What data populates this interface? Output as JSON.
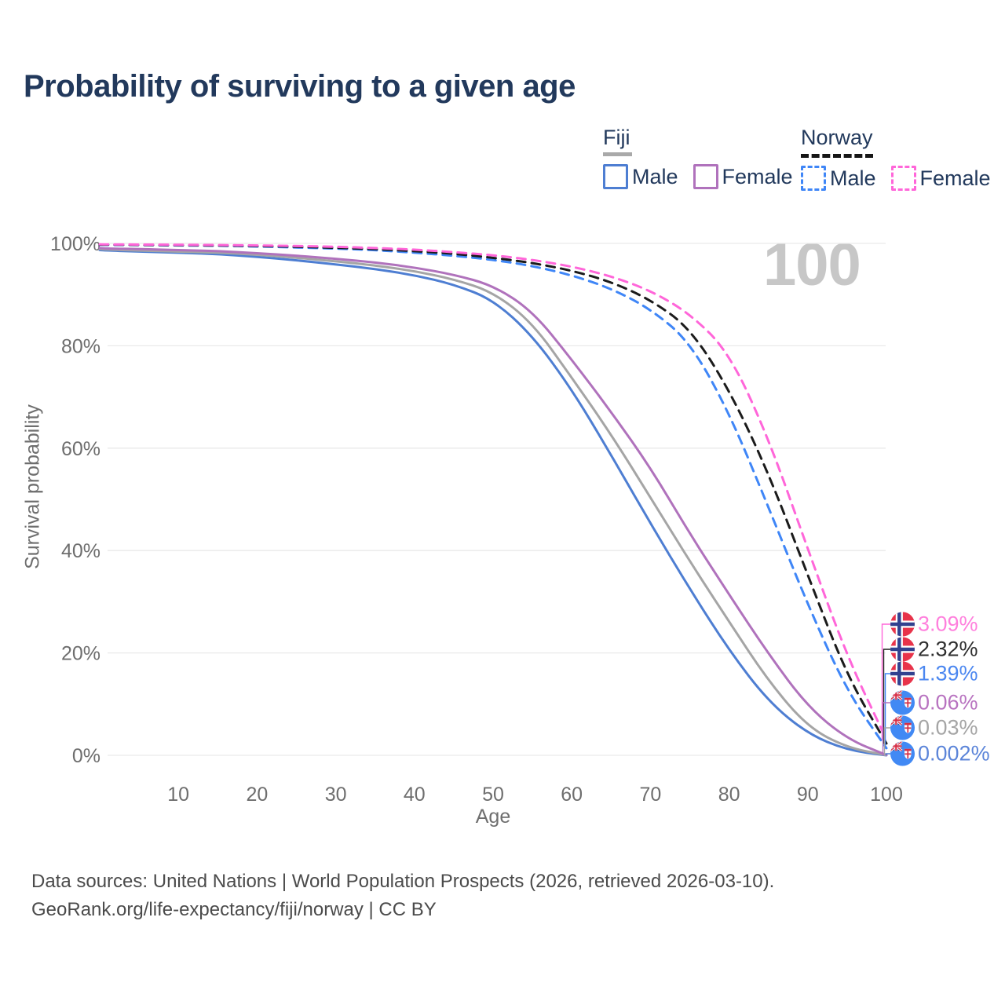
{
  "title": "Probability of surviving to a given age",
  "legend": {
    "fiji": {
      "label": "Fiji",
      "male": "Male",
      "female": "Female"
    },
    "norway": {
      "label": "Norway",
      "male": "Male",
      "female": "Female"
    }
  },
  "age_cursor": "100",
  "axes": {
    "y_label": "Survival probability",
    "y_ticks": [
      "100%",
      "80%",
      "60%",
      "40%",
      "20%",
      "0%"
    ],
    "x_ticks": [
      "10",
      "20",
      "30",
      "40",
      "50",
      "60",
      "70",
      "80",
      "90",
      "100"
    ],
    "x_label": "Age"
  },
  "end_labels": [
    {
      "flag": "norway",
      "series": "Norway Female",
      "value": "3.09%",
      "color": "#ff80dd"
    },
    {
      "flag": "norway",
      "series": "Norway Both sexes",
      "value": "2.32%",
      "color": "#2e2e2e"
    },
    {
      "flag": "norway",
      "series": "Norway Male",
      "value": "1.39%",
      "color": "#4b87f0"
    },
    {
      "flag": "fiji",
      "series": "Fiji Female",
      "value": "0.06%",
      "color": "#b873c0"
    },
    {
      "flag": "fiji",
      "series": "Fiji Both sexes",
      "value": "0.03%",
      "color": "#a5a5a5"
    },
    {
      "flag": "fiji",
      "series": "Fiji Male",
      "value": "0.002%",
      "color": "#5c85d9"
    }
  ],
  "footer": {
    "line1": "Data sources: United Nations | World Population Prospects (2026, retrieved 2026-03-10).",
    "line2": "GeoRank.org/life-expectancy/fiji/norway | CC BY"
  },
  "chart_data": {
    "type": "line",
    "title": "Probability of surviving to a given age",
    "xlabel": "Age",
    "ylabel": "Survival probability",
    "xlim": [
      0,
      100
    ],
    "ylim": [
      0,
      100
    ],
    "grid": "horizontal",
    "y_tick_percents": [
      100,
      80,
      60,
      40,
      20,
      0
    ],
    "x_tick_ages": [
      10,
      20,
      30,
      40,
      50,
      60,
      70,
      80,
      90,
      100
    ],
    "x": [
      0,
      1,
      5,
      10,
      15,
      20,
      25,
      30,
      35,
      40,
      45,
      50,
      55,
      60,
      65,
      70,
      75,
      80,
      85,
      90,
      95,
      100
    ],
    "series": [
      {
        "name": "Fiji Male",
        "country": "Fiji",
        "sex": "male",
        "style": "solid",
        "color": "#4e7ed2",
        "values": [
          98.7,
          98.6,
          98.4,
          98.2,
          97.9,
          97.4,
          96.7,
          95.9,
          95.0,
          93.8,
          92.0,
          89.0,
          82.0,
          71.5,
          58.7,
          45.3,
          32.5,
          20.5,
          10.5,
          4.2,
          1.0,
          0.002
        ]
      },
      {
        "name": "Fiji Both sexes",
        "country": "Fiji",
        "sex": "both",
        "style": "solid",
        "color": "#a5a5a5",
        "values": [
          98.9,
          98.8,
          98.6,
          98.4,
          98.2,
          97.8,
          97.2,
          96.5,
          95.7,
          94.6,
          93.0,
          90.5,
          84.5,
          73.8,
          62.7,
          50.4,
          37.9,
          26.1,
          14.5,
          5.5,
          1.5,
          0.03
        ]
      },
      {
        "name": "Fiji Female",
        "country": "Fiji",
        "sex": "female",
        "style": "solid",
        "color": "#b072bc",
        "values": [
          99.1,
          99.0,
          98.9,
          98.7,
          98.5,
          98.1,
          97.6,
          97.0,
          96.3,
          95.3,
          93.9,
          91.8,
          86.8,
          77.3,
          67.1,
          56.2,
          43.3,
          31.4,
          19.8,
          9.5,
          3.2,
          0.06
        ]
      },
      {
        "name": "Norway Male",
        "country": "Norway",
        "sex": "male",
        "style": "dashed",
        "color": "#3f86f7",
        "values": [
          99.72,
          99.7,
          99.68,
          99.6,
          99.55,
          99.4,
          99.2,
          99.0,
          98.7,
          98.2,
          97.6,
          96.8,
          95.6,
          93.8,
          91.2,
          87.2,
          80.8,
          67.0,
          48.5,
          29.4,
          12.5,
          1.39
        ]
      },
      {
        "name": "Norway Both sexes",
        "country": "Norway",
        "sex": "both",
        "style": "dashed",
        "color": "#1b1b1b",
        "values": [
          99.77,
          99.75,
          99.72,
          99.67,
          99.6,
          99.5,
          99.35,
          99.15,
          98.9,
          98.5,
          98.0,
          97.2,
          96.2,
          94.7,
          92.5,
          89.0,
          83.5,
          71.5,
          55.2,
          35.2,
          15.5,
          2.32
        ]
      },
      {
        "name": "Norway Female",
        "country": "Norway",
        "sex": "female",
        "style": "dashed",
        "color": "#ff66d9",
        "values": [
          99.82,
          99.8,
          99.78,
          99.73,
          99.68,
          99.6,
          99.5,
          99.35,
          99.1,
          98.8,
          98.3,
          97.7,
          96.8,
          95.5,
          93.6,
          90.8,
          86.3,
          78.7,
          62.0,
          40.3,
          19.3,
          3.09
        ]
      }
    ]
  }
}
